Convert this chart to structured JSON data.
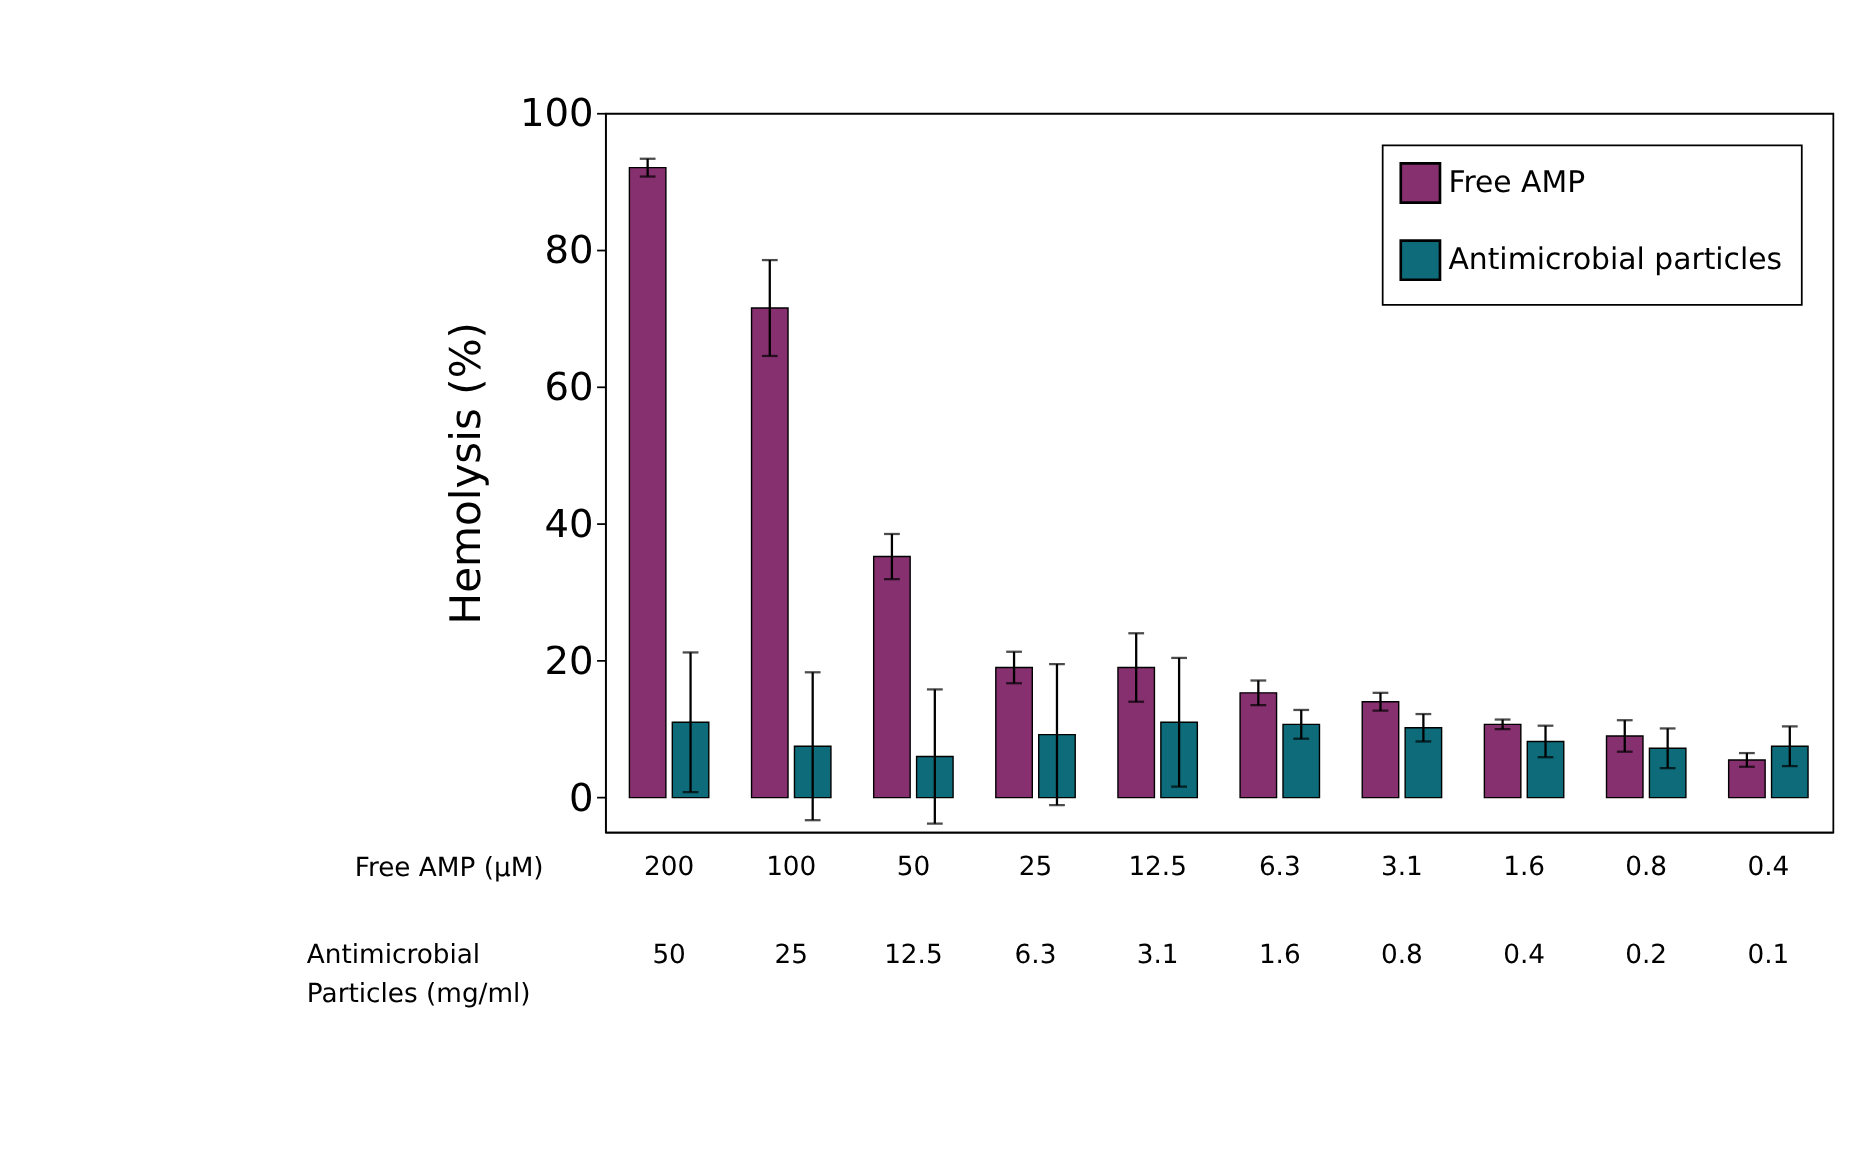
{
  "chart_data": {
    "type": "bar",
    "ylabel": "Hemolysis (%)",
    "xlabel": "Free AMP (µM)",
    "categories": [
      "200",
      "100",
      "50",
      "25",
      "12.5",
      "6.3",
      "3.1",
      "1.6",
      "0.8",
      "0.4"
    ],
    "series": [
      {
        "name": "Free AMP",
        "color": "#86306f",
        "values": [
          92,
          71.5,
          35.2,
          19,
          19,
          15.3,
          14,
          10.7,
          9,
          5.5
        ],
        "errors": [
          1.3,
          7,
          3.3,
          2.3,
          5,
          1.8,
          1.3,
          0.7,
          2.3,
          1
        ]
      },
      {
        "name": "Antimicrobial particles",
        "color": "#0d6b7a",
        "values": [
          11,
          7.5,
          6,
          9.2,
          11,
          10.7,
          10.2,
          8.2,
          7.2,
          7.5
        ],
        "errors": [
          10.2,
          10.8,
          9.8,
          10.3,
          9.4,
          2.1,
          2,
          2.3,
          2.9,
          2.9
        ]
      }
    ],
    "annotations": [
      "Antimicrobial Particles (mg/ml)",
      "50",
      "25",
      "12.5",
      "6.3",
      "3.1",
      "1.6",
      "0.8",
      "0.4",
      "0.2",
      "0.1"
    ],
    "ylim": [
      -5,
      100
    ],
    "yticks": [
      0,
      20,
      40,
      60,
      80,
      100
    ],
    "grid": false,
    "legend": "top right"
  }
}
